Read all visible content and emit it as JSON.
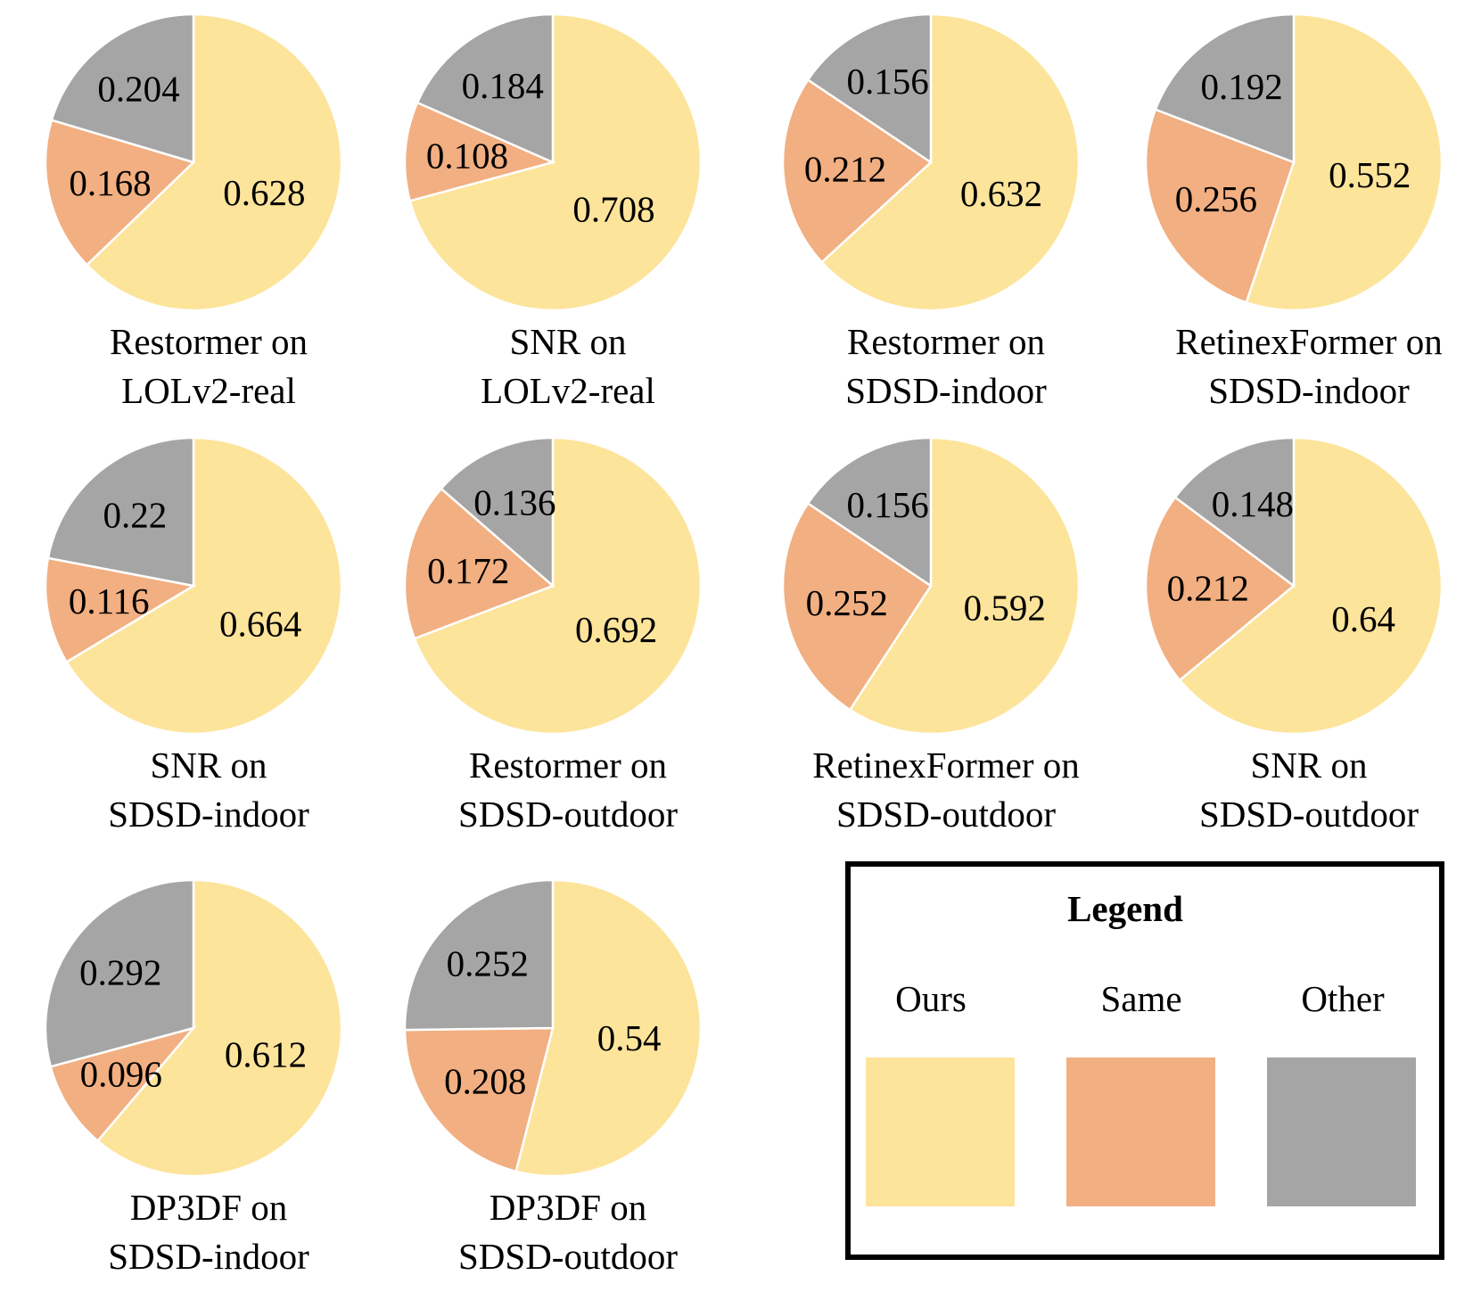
{
  "chart_data": {
    "type": "pie",
    "series_names": [
      "Ours",
      "Same",
      "Other"
    ],
    "colors": {
      "Ours": "#FDE49B",
      "Same": "#F2AF81",
      "Other": "#A5A5A5"
    },
    "charts": [
      {
        "caption": [
          "Restormer on",
          "LOLv2-real"
        ],
        "values": [
          0.628,
          0.168,
          0.204
        ],
        "labels": [
          "0.628",
          "0.168",
          "0.204"
        ]
      },
      {
        "caption": [
          "SNR on",
          "LOLv2-real"
        ],
        "values": [
          0.708,
          0.108,
          0.184
        ],
        "labels": [
          "0.708",
          "0.108",
          "0.184"
        ]
      },
      {
        "caption": [
          "Restormer on",
          "SDSD-indoor"
        ],
        "values": [
          0.632,
          0.212,
          0.156
        ],
        "labels": [
          "0.632",
          "0.212",
          "0.156"
        ]
      },
      {
        "caption": [
          "RetinexFormer on",
          "SDSD-indoor"
        ],
        "values": [
          0.552,
          0.256,
          0.192
        ],
        "labels": [
          "0.552",
          "0.256",
          "0.192"
        ]
      },
      {
        "caption": [
          "SNR on",
          "SDSD-indoor"
        ],
        "values": [
          0.664,
          0.116,
          0.22
        ],
        "labels": [
          "0.664",
          "0.116",
          "0.22"
        ]
      },
      {
        "caption": [
          "Restormer on",
          "SDSD-outdoor"
        ],
        "values": [
          0.692,
          0.172,
          0.136
        ],
        "labels": [
          "0.692",
          "0.172",
          "0.136"
        ]
      },
      {
        "caption": [
          "RetinexFormer on",
          "SDSD-outdoor"
        ],
        "values": [
          0.592,
          0.252,
          0.156
        ],
        "labels": [
          "0.592",
          "0.252",
          "0.156"
        ]
      },
      {
        "caption": [
          "SNR on",
          "SDSD-outdoor"
        ],
        "values": [
          0.64,
          0.212,
          0.148
        ],
        "labels": [
          "0.64",
          "0.212",
          "0.148"
        ]
      },
      {
        "caption": [
          "DP3DF on",
          "SDSD-indoor"
        ],
        "values": [
          0.612,
          0.096,
          0.292
        ],
        "labels": [
          "0.612",
          "0.096",
          "0.292"
        ]
      },
      {
        "caption": [
          "DP3DF on",
          "SDSD-outdoor"
        ],
        "values": [
          0.54,
          0.208,
          0.252
        ],
        "labels": [
          "0.54",
          "0.208",
          "0.252"
        ]
      }
    ]
  },
  "legend": {
    "title": "Legend",
    "items": [
      {
        "label": "Ours",
        "color": "#FDE49B"
      },
      {
        "label": "Same",
        "color": "#F2AF81"
      },
      {
        "label": "Other",
        "color": "#A5A5A5"
      }
    ]
  }
}
